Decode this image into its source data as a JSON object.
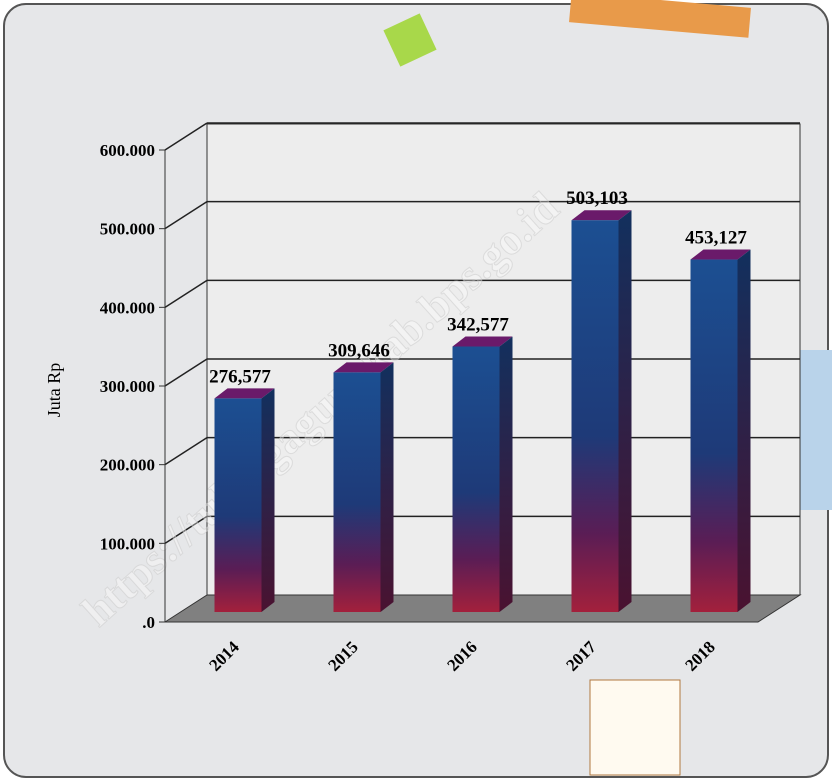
{
  "chart_data": {
    "type": "bar3d",
    "y_label": "Juta Rp",
    "watermark": "https://tulungagungkab.bps.go.id",
    "categories": [
      "2014",
      "2015",
      "2016",
      "2017",
      "2018"
    ],
    "values": [
      276577,
      309646,
      342577,
      503103,
      453127
    ],
    "value_labels": [
      "276,577",
      "309,646",
      "342,577",
      "503,103",
      "453,127"
    ],
    "ylim": [
      0,
      600000
    ],
    "yticks": [
      {
        "value": 0,
        "label": ".0"
      },
      {
        "value": 100000,
        "label": "100.000"
      },
      {
        "value": 200000,
        "label": "200.000"
      },
      {
        "value": 300000,
        "label": "300.000"
      },
      {
        "value": 400000,
        "label": "400.000"
      },
      {
        "value": 500000,
        "label": "500.000"
      },
      {
        "value": 600000,
        "label": "600.000"
      }
    ],
    "grid": true
  }
}
